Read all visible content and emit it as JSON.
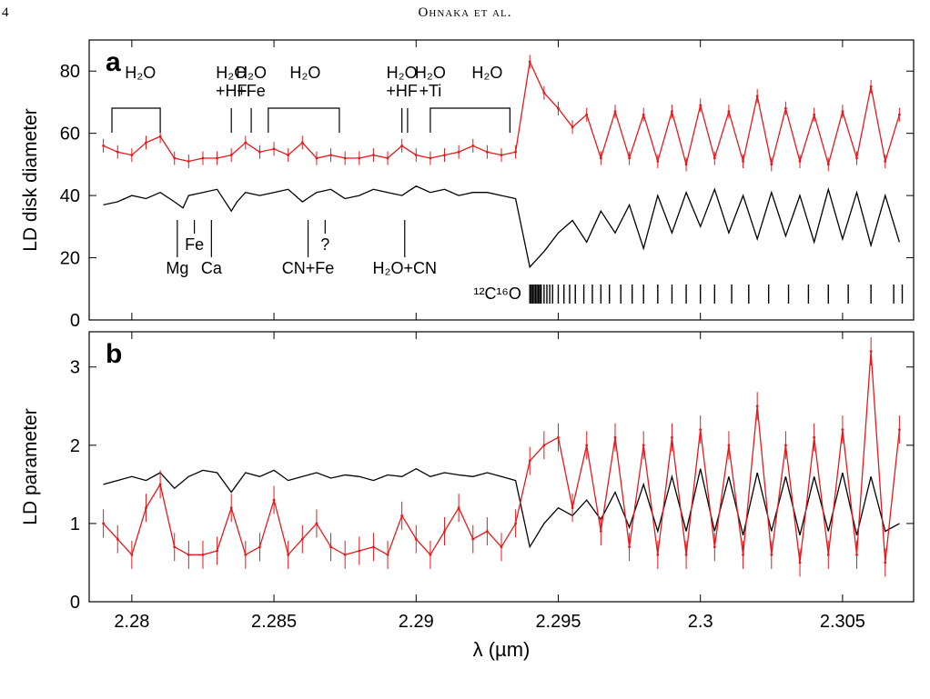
{
  "page": {
    "number": "4",
    "running_head": "Ohnaka et al."
  },
  "colors": {
    "model": "#000000",
    "data": "#e8191b"
  },
  "chart_data": [
    {
      "type": "line",
      "panel_label": "a",
      "ylabel": "LD disk diameter",
      "xlim": [
        2.2785,
        2.3075
      ],
      "ylim": [
        0,
        90
      ],
      "yticks": [
        0,
        20,
        40,
        60,
        80
      ],
      "series": [
        {
          "name": "",
          "color": "#000000",
          "x": [
            2.279,
            2.2795,
            2.28,
            2.2805,
            2.281,
            2.2815,
            2.2818,
            2.282,
            2.2825,
            2.283,
            2.2835,
            2.2837,
            2.284,
            2.2845,
            2.285,
            2.2855,
            2.286,
            2.2865,
            2.287,
            2.2875,
            2.288,
            2.2885,
            2.289,
            2.2895,
            2.29,
            2.2905,
            2.291,
            2.2915,
            2.292,
            2.2925,
            2.293,
            2.2935,
            2.294,
            2.2945,
            2.295,
            2.2955,
            2.296,
            2.2965,
            2.297,
            2.2975,
            2.298,
            2.2985,
            2.299,
            2.2995,
            2.3,
            2.3005,
            2.301,
            2.3015,
            2.302,
            2.3025,
            2.303,
            2.3035,
            2.304,
            2.3045,
            2.305,
            2.3055,
            2.306,
            2.3065,
            2.307
          ],
          "y": [
            37,
            38,
            40,
            39,
            41,
            38,
            36,
            40,
            41,
            42,
            35,
            38,
            41,
            40,
            41,
            42,
            38,
            41,
            42,
            39,
            40,
            42,
            41,
            40,
            43,
            41,
            42,
            40,
            41,
            41,
            40,
            39,
            17,
            22,
            28,
            32,
            25,
            35,
            28,
            37,
            23,
            40,
            28,
            41,
            30,
            42,
            28,
            40,
            26,
            41,
            27,
            40,
            25,
            42,
            26,
            41,
            24,
            40,
            25
          ]
        },
        {
          "name": "",
          "color": "#e8191b",
          "error_bars": true,
          "x": [
            2.279,
            2.2795,
            2.28,
            2.2805,
            2.281,
            2.2815,
            2.282,
            2.2825,
            2.283,
            2.2835,
            2.284,
            2.2845,
            2.285,
            2.2855,
            2.286,
            2.2865,
            2.287,
            2.2875,
            2.288,
            2.2885,
            2.289,
            2.2895,
            2.29,
            2.2905,
            2.291,
            2.2915,
            2.292,
            2.2925,
            2.293,
            2.2935,
            2.294,
            2.2945,
            2.295,
            2.2955,
            2.296,
            2.2965,
            2.297,
            2.2975,
            2.298,
            2.2985,
            2.299,
            2.2995,
            2.3,
            2.3005,
            2.301,
            2.3015,
            2.302,
            2.3025,
            2.303,
            2.3035,
            2.304,
            2.3045,
            2.305,
            2.3055,
            2.306,
            2.3065,
            2.307
          ],
          "y": [
            56,
            54,
            53,
            57,
            59,
            52,
            51,
            52,
            52,
            53,
            57,
            54,
            55,
            53,
            57,
            52,
            53,
            52,
            52,
            53,
            52,
            56,
            53,
            52,
            53,
            54,
            56,
            54,
            53,
            54,
            83,
            73,
            68,
            62,
            66,
            52,
            67,
            52,
            66,
            51,
            67,
            50,
            69,
            52,
            67,
            51,
            72,
            50,
            68,
            51,
            66,
            50,
            67,
            52,
            75,
            51,
            66
          ]
        }
      ],
      "annotations": {
        "top": [
          {
            "text": "H₂O",
            "x": 2.2803
          },
          {
            "text": "H₂O",
            "x": 2.2835
          },
          {
            "text": "+HF",
            "x": 2.2835
          },
          {
            "text": "H₂O",
            "x": 2.2842
          },
          {
            "text": "+Fe",
            "x": 2.2842
          },
          {
            "text": "H₂O",
            "x": 2.2861
          },
          {
            "text": "H₂O",
            "x": 2.2895
          },
          {
            "text": "+HF",
            "x": 2.2895
          },
          {
            "text": "H₂O",
            "x": 2.2905
          },
          {
            "text": "+Ti",
            "x": 2.2905
          },
          {
            "text": "H₂O",
            "x": 2.2925
          }
        ],
        "bottom": [
          {
            "text": "Mg",
            "x": 2.2816
          },
          {
            "text": "Fe",
            "x": 2.2822
          },
          {
            "text": "Ca",
            "x": 2.2828
          },
          {
            "text": "CN+Fe",
            "x": 2.2862
          },
          {
            "text": "?",
            "x": 2.2868
          },
          {
            "text": "H₂O+CN",
            "x": 2.2896
          }
        ],
        "co_label": "¹²C¹⁶O",
        "co_lines_x": [
          2.294,
          2.29405,
          2.2941,
          2.29415,
          2.2942,
          2.29425,
          2.2943,
          2.29435,
          2.2944,
          2.2945,
          2.2946,
          2.2947,
          2.2948,
          2.295,
          2.2952,
          2.2954,
          2.2956,
          2.2959,
          2.2962,
          2.2965,
          2.2968,
          2.2972,
          2.2976,
          2.298,
          2.2985,
          2.299,
          2.2995,
          2.3,
          2.3005,
          2.3011,
          2.3017,
          2.3024,
          2.3031,
          2.3038,
          2.3045,
          2.3052,
          2.306,
          2.3068,
          2.3071
        ]
      }
    },
    {
      "type": "line",
      "panel_label": "b",
      "ylabel": "LD parameter",
      "xlabel": "λ (µm)",
      "xlim": [
        2.2785,
        2.3075
      ],
      "ylim": [
        0,
        3.45
      ],
      "yticks": [
        0,
        1,
        2,
        3
      ],
      "xticks": [
        2.28,
        2.285,
        2.29,
        2.295,
        2.3,
        2.305
      ],
      "xtick_labels": [
        "2.28",
        "2.285",
        "2.29",
        "2.295",
        "2.3",
        "2.305"
      ],
      "series": [
        {
          "name": "",
          "color": "#000000",
          "x": [
            2.279,
            2.2795,
            2.28,
            2.2805,
            2.281,
            2.2815,
            2.282,
            2.2825,
            2.283,
            2.2835,
            2.284,
            2.2845,
            2.285,
            2.2855,
            2.286,
            2.2865,
            2.287,
            2.2875,
            2.288,
            2.2885,
            2.289,
            2.2895,
            2.29,
            2.2905,
            2.291,
            2.2915,
            2.292,
            2.2925,
            2.293,
            2.2935,
            2.294,
            2.2945,
            2.295,
            2.2955,
            2.296,
            2.2965,
            2.297,
            2.2975,
            2.298,
            2.2985,
            2.299,
            2.2995,
            2.3,
            2.3005,
            2.301,
            2.3015,
            2.302,
            2.3025,
            2.303,
            2.3035,
            2.304,
            2.3045,
            2.305,
            2.3055,
            2.306,
            2.3065,
            2.307
          ],
          "y": [
            1.5,
            1.55,
            1.6,
            1.55,
            1.65,
            1.45,
            1.6,
            1.68,
            1.65,
            1.4,
            1.65,
            1.6,
            1.68,
            1.55,
            1.6,
            1.65,
            1.58,
            1.62,
            1.6,
            1.55,
            1.62,
            1.6,
            1.7,
            1.6,
            1.65,
            1.62,
            1.6,
            1.65,
            1.6,
            1.55,
            0.7,
            1.0,
            1.2,
            1.1,
            1.3,
            1.05,
            1.4,
            0.95,
            1.5,
            0.9,
            1.6,
            0.9,
            1.7,
            0.9,
            1.6,
            0.85,
            1.65,
            0.9,
            1.6,
            0.85,
            1.6,
            0.9,
            1.65,
            0.85,
            1.6,
            0.9,
            1.0
          ]
        },
        {
          "name": "",
          "color": "#e8191b",
          "error_bars": true,
          "x": [
            2.279,
            2.2795,
            2.28,
            2.2805,
            2.281,
            2.2815,
            2.282,
            2.2825,
            2.283,
            2.2835,
            2.284,
            2.2845,
            2.285,
            2.2855,
            2.286,
            2.2865,
            2.287,
            2.2875,
            2.288,
            2.2885,
            2.289,
            2.2895,
            2.29,
            2.2905,
            2.291,
            2.2915,
            2.292,
            2.2925,
            2.293,
            2.2935,
            2.294,
            2.2945,
            2.295,
            2.2955,
            2.296,
            2.2965,
            2.297,
            2.2975,
            2.298,
            2.2985,
            2.299,
            2.2995,
            2.3,
            2.3005,
            2.301,
            2.3015,
            2.302,
            2.3025,
            2.303,
            2.3035,
            2.304,
            2.3045,
            2.305,
            2.3055,
            2.306,
            2.3065,
            2.307
          ],
          "y": [
            1.0,
            0.8,
            0.6,
            1.2,
            1.5,
            0.7,
            0.6,
            0.6,
            0.65,
            1.2,
            0.6,
            0.7,
            1.3,
            0.6,
            0.8,
            1.0,
            0.7,
            0.6,
            0.65,
            0.7,
            0.6,
            1.1,
            0.8,
            0.6,
            0.9,
            1.2,
            0.8,
            0.9,
            0.7,
            1.0,
            1.8,
            2.0,
            2.1,
            1.2,
            2.0,
            0.9,
            2.1,
            0.7,
            2.0,
            0.6,
            2.1,
            0.6,
            2.2,
            0.7,
            2.0,
            0.6,
            2.5,
            0.6,
            2.0,
            0.5,
            2.1,
            0.6,
            2.2,
            0.6,
            3.2,
            0.5,
            2.2
          ]
        }
      ]
    }
  ]
}
